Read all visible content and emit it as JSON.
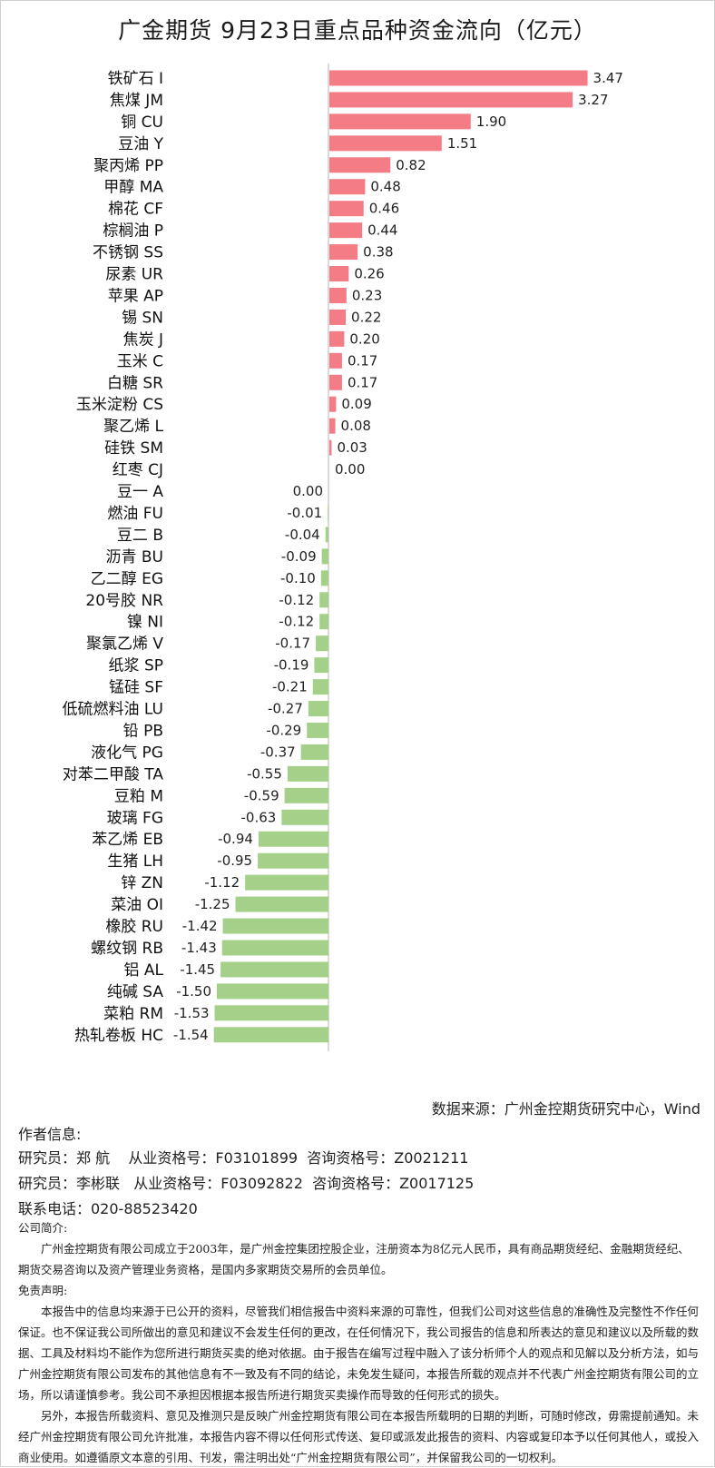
{
  "title": "广金期货 9月23日重点品种资金流向（亿元）",
  "chart_data": {
    "type": "bar",
    "orientation": "horizontal",
    "categories": [
      "铁矿石 I",
      "焦煤 JM",
      "铜 CU",
      "豆油 Y",
      "聚丙烯 PP",
      "甲醇 MA",
      "棉花 CF",
      "棕榈油 P",
      "不锈钢 SS",
      "尿素 UR",
      "苹果 AP",
      "锡 SN",
      "焦炭 J",
      "玉米 C",
      "白糖 SR",
      "玉米淀粉 CS",
      "聚乙烯 L",
      "硅铁 SM",
      "红枣 CJ",
      "豆一 A",
      "燃油 FU",
      "豆二 B",
      "沥青 BU",
      "乙二醇 EG",
      "20号胶 NR",
      "镍 NI",
      "聚氯乙烯 V",
      "纸浆 SP",
      "锰硅 SF",
      "低硫燃料油 LU",
      "铅 PB",
      "液化气 PG",
      "对苯二甲酸 TA",
      "豆粕 M",
      "玻璃 FG",
      "苯乙烯 EB",
      "生猪 LH",
      "锌 ZN",
      "菜油 OI",
      "橡胶 RU",
      "螺纹钢 RB",
      "铝 AL",
      "纯碱 SA",
      "菜粕 RM",
      "热轧卷板 HC"
    ],
    "values": [
      3.47,
      3.27,
      1.9,
      1.51,
      0.82,
      0.48,
      0.46,
      0.44,
      0.38,
      0.26,
      0.23,
      0.22,
      0.2,
      0.17,
      0.17,
      0.09,
      0.08,
      0.03,
      0.0,
      0.0,
      -0.01,
      -0.04,
      -0.09,
      -0.1,
      -0.12,
      -0.12,
      -0.17,
      -0.19,
      -0.21,
      -0.27,
      -0.29,
      -0.37,
      -0.55,
      -0.59,
      -0.63,
      -0.94,
      -0.95,
      -1.12,
      -1.25,
      -1.42,
      -1.43,
      -1.45,
      -1.5,
      -1.53,
      -1.54
    ],
    "value_labels": [
      "3.47",
      "3.27",
      "1.90",
      "1.51",
      "0.82",
      "0.48",
      "0.46",
      "0.44",
      "0.38",
      "0.26",
      "0.23",
      "0.22",
      "0.20",
      "0.17",
      "0.17",
      "0.09",
      "0.08",
      "0.03",
      "0.00",
      "0.00",
      "-0.01",
      "-0.04",
      "-0.09",
      "-0.10",
      "-0.12",
      "-0.12",
      "-0.17",
      "-0.19",
      "-0.21",
      "-0.27",
      "-0.29",
      "-0.37",
      "-0.55",
      "-0.59",
      "-0.63",
      "-0.94",
      "-0.95",
      "-1.12",
      "-1.25",
      "-1.42",
      "-1.43",
      "-1.45",
      "-1.50",
      "-1.53",
      "-1.54"
    ],
    "colors": {
      "positive": "#f47c86",
      "negative": "#a5d08a",
      "axis": "#b5b5b5"
    },
    "grid": false,
    "legend": "none"
  },
  "source": "数据来源：广州金控期货研究中心，Wind",
  "author_header": "作者信息:",
  "analysts": [
    "研究员：郑 航    从业资格号：F03101899  咨询资格号：Z0021211",
    "研究员：李彬联   从业资格号：F03092822  咨询资格号：Z0017125"
  ],
  "phone": "联系电话：020-88523420",
  "company_header": "公司简介:",
  "company_text": "广州金控期货有限公司成立于2003年，是广州金控集团控股企业，注册资本为8亿元人民币，具有商品期货经纪、金融期货经纪、期货交易咨询以及资产管理业务资格，是国内多家期货交易所的会员单位。",
  "disclaimer_header": "免责声明:",
  "disclaimer_1": "本报告中的信息均来源于已公开的资料，尽管我们相信报告中资料来源的可靠性，但我们公司对这些信息的准确性及完整性不作任何保证。也不保证我公司所做出的意见和建议不会发生任何的更改，在任何情况下，我公司报告的信息和所表达的意见和建议以及所载的数据、工具及材料均不能作为您所进行期货买卖的绝对依据。由于报告在编写过程中融入了该分析师个人的观点和见解以及分析方法，如与广州金控期货有限公司发布的其他信息有不一致及有不同的结论，未免发生疑问，本报告所载的观点并不代表广州金控期货有限公司的立场，所以请谨慎参考。我公司不承担因根据本报告所进行期货买卖操作而导致的任何形式的损失。",
  "disclaimer_2": "另外，本报告所载资料、意见及推测只是反映广州金控期货有限公司在本报告所载明的日期的判断，可随时修改，毋需提前通知。未经广州金控期货有限公司允许批准，本报告内容不得以任何形式传送、复印或派发此报告的资料、内容或复印本予以任何其他人，或投入商业使用。如遵循原文本意的引用、刊发，需注明出处“广州金控期货有限公司”，并保留我公司的一切权利。"
}
